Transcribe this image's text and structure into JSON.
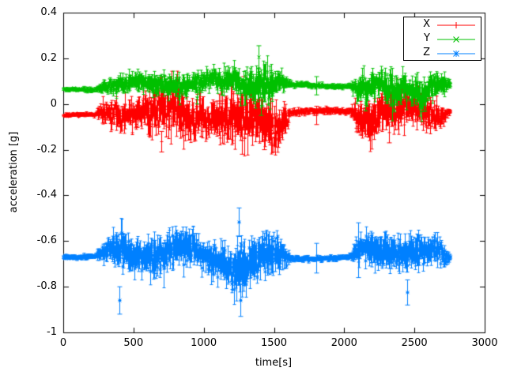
{
  "page": {
    "background": "#ffffff"
  },
  "chart_data": {
    "type": "line",
    "style": "errorbars",
    "title": "",
    "xlabel": "time[s]",
    "ylabel": "acceleration [g]",
    "xlim": [
      0,
      3000
    ],
    "ylim": [
      -1,
      0.4
    ],
    "grid": false,
    "axis_color": "#000000",
    "xticks": {
      "values": [
        0,
        500,
        1000,
        1500,
        2000,
        2500,
        3000
      ],
      "labels": [
        "0",
        "500",
        "1000",
        "1500",
        "2000",
        "2500",
        "3000"
      ]
    },
    "yticks": {
      "values": [
        0.4,
        0.2,
        0,
        -0.2,
        -0.4,
        -0.6,
        -0.8,
        -1
      ],
      "labels": [
        "0.4",
        "0.2",
        "0",
        "-0.2",
        "-0.4",
        "-0.6",
        "-0.8",
        "-1"
      ]
    },
    "legend": {
      "position": "top-right",
      "box": true
    },
    "sample_step_s": 3,
    "series": [
      {
        "name": "X",
        "color": "#ff0000",
        "marker": "plus",
        "baseline": -0.05,
        "envelope": [
          [
            0,
            -0.05,
            0.008
          ],
          [
            230,
            -0.05,
            0.009
          ],
          [
            260,
            -0.045,
            0.03
          ],
          [
            320,
            -0.04,
            0.05
          ],
          [
            420,
            -0.05,
            0.055
          ],
          [
            520,
            -0.045,
            0.06
          ],
          [
            620,
            -0.055,
            0.075
          ],
          [
            720,
            -0.06,
            0.09
          ],
          [
            820,
            -0.06,
            0.095
          ],
          [
            920,
            -0.05,
            0.075
          ],
          [
            1020,
            -0.045,
            0.065
          ],
          [
            1120,
            -0.055,
            0.085
          ],
          [
            1220,
            -0.065,
            0.1
          ],
          [
            1320,
            -0.07,
            0.105
          ],
          [
            1420,
            -0.055,
            0.1
          ],
          [
            1520,
            -0.06,
            0.085
          ],
          [
            1580,
            -0.05,
            0.06
          ],
          [
            1615,
            -0.032,
            0.012
          ],
          [
            2040,
            -0.032,
            0.012
          ],
          [
            2090,
            -0.05,
            0.06
          ],
          [
            2180,
            -0.06,
            0.085
          ],
          [
            2280,
            -0.05,
            0.075
          ],
          [
            2380,
            -0.06,
            0.085
          ],
          [
            2480,
            -0.05,
            0.08
          ],
          [
            2580,
            -0.055,
            0.07
          ],
          [
            2680,
            -0.045,
            0.055
          ],
          [
            2730,
            -0.035,
            0.02
          ],
          [
            2755,
            -0.03,
            0.01
          ]
        ],
        "spikes": [
          [
            700,
            -0.21,
            -0.12
          ],
          [
            1270,
            -0.22,
            -0.1
          ],
          [
            1285,
            0.04,
            0.12
          ],
          [
            1430,
            -0.2,
            -0.09
          ],
          [
            1800,
            -0.09,
            -0.01
          ],
          [
            2320,
            -0.17,
            -0.08
          ]
        ]
      },
      {
        "name": "Y",
        "color": "#00c000",
        "marker": "cross",
        "baseline": 0.08,
        "envelope": [
          [
            0,
            0.065,
            0.007
          ],
          [
            230,
            0.065,
            0.008
          ],
          [
            260,
            0.08,
            0.02
          ],
          [
            320,
            0.09,
            0.03
          ],
          [
            420,
            0.09,
            0.032
          ],
          [
            520,
            0.095,
            0.035
          ],
          [
            620,
            0.09,
            0.04
          ],
          [
            720,
            0.095,
            0.042
          ],
          [
            820,
            0.09,
            0.045
          ],
          [
            920,
            0.088,
            0.04
          ],
          [
            1020,
            0.09,
            0.036
          ],
          [
            1120,
            0.085,
            0.042
          ],
          [
            1220,
            0.09,
            0.05
          ],
          [
            1320,
            0.08,
            0.06
          ],
          [
            1380,
            0.09,
            0.075
          ],
          [
            1440,
            0.075,
            0.085
          ],
          [
            1500,
            0.08,
            0.05
          ],
          [
            1560,
            0.085,
            0.04
          ],
          [
            1615,
            0.08,
            0.01
          ],
          [
            2040,
            0.08,
            0.01
          ],
          [
            2090,
            0.08,
            0.045
          ],
          [
            2150,
            0.065,
            0.065
          ],
          [
            2220,
            0.09,
            0.05
          ],
          [
            2300,
            0.07,
            0.065
          ],
          [
            2360,
            0.055,
            0.075
          ],
          [
            2420,
            0.09,
            0.05
          ],
          [
            2500,
            0.08,
            0.055
          ],
          [
            2560,
            0.065,
            0.07
          ],
          [
            2620,
            0.09,
            0.05
          ],
          [
            2700,
            0.09,
            0.04
          ],
          [
            2740,
            0.085,
            0.02
          ],
          [
            2755,
            0.08,
            0.01
          ]
        ],
        "spikes": [
          [
            1390,
            0.155,
            0.255
          ],
          [
            1405,
            -0.05,
            0.03
          ],
          [
            950,
            0.0,
            0.05
          ],
          [
            1800,
            0.04,
            0.12
          ],
          [
            2150,
            -0.03,
            0.04
          ],
          [
            2350,
            -0.035,
            0.04
          ]
        ]
      },
      {
        "name": "Z",
        "color": "#0080ff",
        "marker": "star",
        "baseline": -0.67,
        "envelope": [
          [
            0,
            -0.67,
            0.009
          ],
          [
            230,
            -0.67,
            0.01
          ],
          [
            260,
            -0.665,
            0.025
          ],
          [
            320,
            -0.66,
            0.05
          ],
          [
            370,
            -0.67,
            0.065
          ],
          [
            420,
            -0.675,
            0.09
          ],
          [
            470,
            -0.67,
            0.065
          ],
          [
            520,
            -0.66,
            0.06
          ],
          [
            570,
            -0.66,
            0.065
          ],
          [
            620,
            -0.65,
            0.075
          ],
          [
            670,
            -0.64,
            0.075
          ],
          [
            720,
            -0.65,
            0.085
          ],
          [
            770,
            -0.64,
            0.08
          ],
          [
            820,
            -0.63,
            0.085
          ],
          [
            870,
            -0.64,
            0.08
          ],
          [
            920,
            -0.65,
            0.07
          ],
          [
            970,
            -0.66,
            0.065
          ],
          [
            1020,
            -0.66,
            0.06
          ],
          [
            1070,
            -0.665,
            0.07
          ],
          [
            1120,
            -0.66,
            0.075
          ],
          [
            1170,
            -0.665,
            0.085
          ],
          [
            1220,
            -0.67,
            0.1
          ],
          [
            1270,
            -0.67,
            0.115
          ],
          [
            1320,
            -0.675,
            0.095
          ],
          [
            1370,
            -0.67,
            0.085
          ],
          [
            1420,
            -0.665,
            0.08
          ],
          [
            1470,
            -0.67,
            0.085
          ],
          [
            1520,
            -0.67,
            0.075
          ],
          [
            1570,
            -0.67,
            0.055
          ],
          [
            1615,
            -0.675,
            0.011
          ],
          [
            2040,
            -0.675,
            0.011
          ],
          [
            2090,
            -0.66,
            0.045
          ],
          [
            2150,
            -0.645,
            0.065
          ],
          [
            2210,
            -0.65,
            0.075
          ],
          [
            2260,
            -0.645,
            0.07
          ],
          [
            2310,
            -0.65,
            0.075
          ],
          [
            2360,
            -0.655,
            0.07
          ],
          [
            2410,
            -0.66,
            0.06
          ],
          [
            2460,
            -0.665,
            0.07
          ],
          [
            2510,
            -0.66,
            0.075
          ],
          [
            2560,
            -0.665,
            0.065
          ],
          [
            2610,
            -0.66,
            0.055
          ],
          [
            2660,
            -0.665,
            0.05
          ],
          [
            2710,
            -0.67,
            0.04
          ],
          [
            2740,
            -0.67,
            0.02
          ],
          [
            2755,
            -0.67,
            0.01
          ]
        ],
        "spikes": [
          [
            400,
            -0.92,
            -0.8
          ],
          [
            1250,
            -0.58,
            -0.455
          ],
          [
            1262,
            -0.93,
            -0.79
          ],
          [
            1800,
            -0.74,
            -0.61
          ],
          [
            2100,
            -0.76,
            -0.52
          ],
          [
            2450,
            -0.88,
            -0.77
          ]
        ]
      }
    ]
  }
}
